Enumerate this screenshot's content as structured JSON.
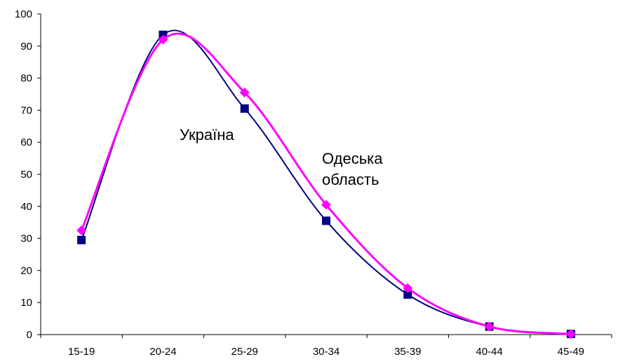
{
  "chart_data": {
    "type": "line",
    "title": "",
    "xlabel": "",
    "ylabel": "",
    "categories": [
      "15-19",
      "20-24",
      "25-29",
      "30-34",
      "35-39",
      "40-44",
      "45-49"
    ],
    "ylim": [
      0,
      100
    ],
    "yticks": [
      0,
      10,
      20,
      30,
      40,
      50,
      60,
      70,
      80,
      90,
      100
    ],
    "grid": false,
    "legend": "none",
    "smooth": true,
    "series": [
      {
        "name": "Україна",
        "values": [
          29.5,
          93.5,
          70.5,
          35.5,
          12.5,
          2.5,
          0.2
        ],
        "color": "#000080",
        "marker": "square"
      },
      {
        "name": "Одеська область",
        "values": [
          32.5,
          92.0,
          75.5,
          40.5,
          14.5,
          2.5,
          0.2
        ],
        "color": "#ff00ff",
        "marker": "diamond"
      }
    ],
    "annotations": [
      {
        "text": "Україна",
        "series": 0
      },
      {
        "text": "Одеська",
        "series": 1
      },
      {
        "text": "область",
        "series": 1
      }
    ]
  }
}
